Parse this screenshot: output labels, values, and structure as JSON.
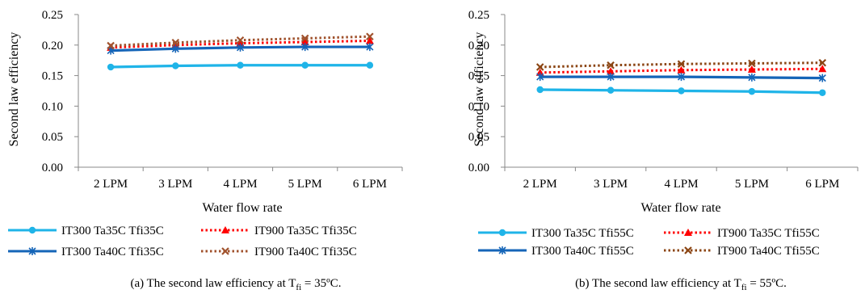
{
  "chart_data": [
    {
      "type": "line",
      "ylabel": "Second law efficiency",
      "xlabel": "Water flow rate",
      "ylim": [
        0,
        0.25
      ],
      "yticks": [
        "0.00",
        "0.05",
        "0.10",
        "0.15",
        "0.20",
        "0.25"
      ],
      "categories": [
        "2 LPM",
        "3 LPM",
        "4 LPM",
        "5 LPM",
        "6 LPM"
      ],
      "caption": "(a) The second law efficiency at T",
      "caption_sub": "fi",
      "caption_tail": " = 35ºC.",
      "legend_position": "bottom",
      "series": [
        {
          "name": "IT300 Ta35C Tfi35C",
          "values": [
            0.164,
            0.166,
            0.167,
            0.167,
            0.167
          ],
          "color": "#1fb4e8",
          "marker": "circle",
          "dash": "solid"
        },
        {
          "name": "IT900 Ta35C Tfi35C",
          "values": [
            0.196,
            0.2,
            0.203,
            0.205,
            0.207
          ],
          "color": "#ff0000",
          "marker": "triangle",
          "dash": "dotted"
        },
        {
          "name": "IT300 Ta40C Tfi35C",
          "values": [
            0.191,
            0.194,
            0.196,
            0.197,
            0.197
          ],
          "color": "#1565b8",
          "marker": "star",
          "dash": "solid"
        },
        {
          "name": "IT900 Ta40C Tfi35C",
          "values": [
            0.199,
            0.204,
            0.208,
            0.211,
            0.214
          ],
          "color": "#a0522d",
          "marker": "x",
          "dash": "dotted"
        }
      ]
    },
    {
      "type": "line",
      "ylabel": "Second law efficiency",
      "xlabel": "Water flow rate",
      "ylim": [
        0,
        0.25
      ],
      "yticks": [
        "0.00",
        "0.05",
        "0.10",
        "0.15",
        "0.20",
        "0.25"
      ],
      "categories": [
        "2 LPM",
        "3 LPM",
        "4 LPM",
        "5 LPM",
        "6 LPM"
      ],
      "caption": "(b) The second law efficiency at T",
      "caption_sub": "fi",
      "caption_tail": " = 55ºC.",
      "legend_position": "bottom",
      "series": [
        {
          "name": "IT300 Ta35C Tfi55C",
          "values": [
            0.127,
            0.126,
            0.125,
            0.124,
            0.122
          ],
          "color": "#1fb4e8",
          "marker": "circle",
          "dash": "solid"
        },
        {
          "name": "IT900 Ta35C Tfi55C",
          "values": [
            0.155,
            0.157,
            0.159,
            0.16,
            0.161
          ],
          "color": "#ff0000",
          "marker": "triangle",
          "dash": "dotted"
        },
        {
          "name": "IT300 Ta40C Tfi55C",
          "values": [
            0.148,
            0.148,
            0.148,
            0.147,
            0.146
          ],
          "color": "#1565b8",
          "marker": "star",
          "dash": "solid"
        },
        {
          "name": "IT900 Ta40C Tfi55C",
          "values": [
            0.164,
            0.167,
            0.169,
            0.17,
            0.171
          ],
          "color": "#8b4513",
          "marker": "x",
          "dash": "dotted"
        }
      ]
    }
  ]
}
